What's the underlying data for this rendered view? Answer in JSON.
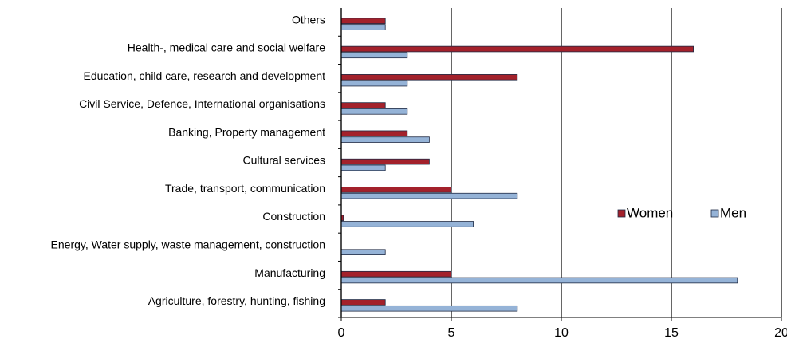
{
  "chart_data": {
    "type": "bar",
    "orientation": "horizontal",
    "categories": [
      "Agriculture, forestry, hunting, fishing",
      "Manufacturing",
      "Energy, Water supply, waste management, construction",
      "Construction",
      "Trade, transport, communication",
      "Cultural services",
      "Banking, Property management",
      "Civil Service, Defence, International organisations",
      "Education, child care, research and development",
      "Health-, medical care and social welfare",
      "Others"
    ],
    "series": [
      {
        "name": "Women",
        "color": "#a3212b",
        "values": [
          2,
          5,
          0,
          0.1,
          5,
          4,
          3,
          2,
          8,
          16,
          2
        ]
      },
      {
        "name": "Men",
        "color": "#95b3d7",
        "values": [
          8,
          18,
          2,
          6,
          8,
          2,
          4,
          3,
          3,
          3,
          2
        ]
      }
    ],
    "xlim": [
      0,
      20
    ],
    "xticks": [
      0,
      5,
      10,
      15,
      20
    ],
    "grid": true,
    "legend": "right"
  }
}
